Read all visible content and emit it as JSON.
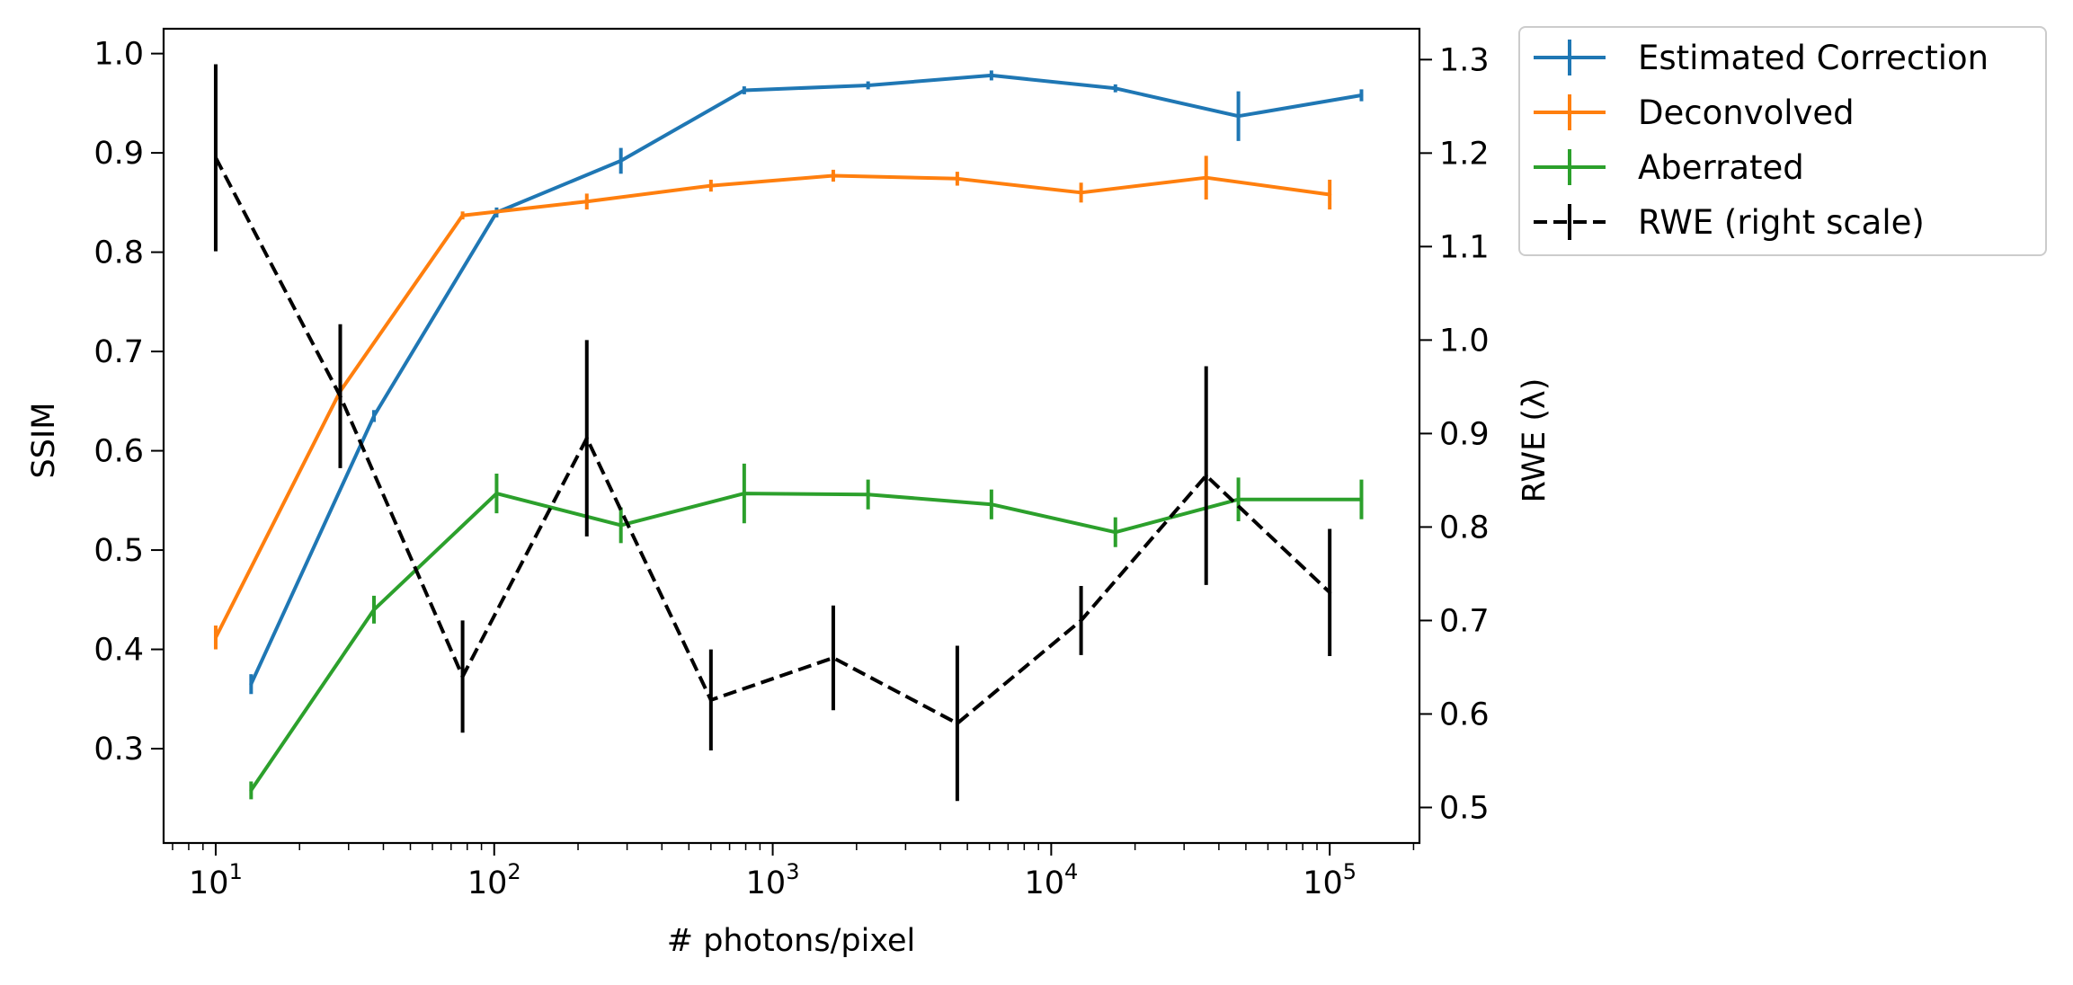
{
  "chart_data": {
    "type": "line",
    "xlabel": "# photons/pixel",
    "ylabel": "SSIM",
    "ylabel_right": "RWE (λ)",
    "xscale": "log",
    "xlim": [
      6.5,
      210000
    ],
    "ylim": [
      0.205,
      1.025
    ],
    "ylim_right": [
      0.462,
      1.333
    ],
    "x_ticks": [
      {
        "value": 10,
        "base": "10",
        "exp": "1"
      },
      {
        "value": 100,
        "base": "10",
        "exp": "2"
      },
      {
        "value": 1000,
        "base": "10",
        "exp": "3"
      },
      {
        "value": 10000,
        "base": "10",
        "exp": "4"
      },
      {
        "value": 100000,
        "base": "10",
        "exp": "5"
      }
    ],
    "y_ticks": [
      "0.3",
      "0.4",
      "0.5",
      "0.6",
      "0.7",
      "0.8",
      "0.9",
      "1.0"
    ],
    "y_ticks_right": [
      "0.5",
      "0.6",
      "0.7",
      "0.8",
      "0.9",
      "1.0",
      "1.1",
      "1.2",
      "1.3"
    ],
    "legend_position": "outside-top-right",
    "series": [
      {
        "name": "Estimated Correction",
        "color": "#1f77b4",
        "axis": "left",
        "style": "solid",
        "x": [
          13.4,
          37,
          102,
          285,
          790,
          2200,
          6100,
          17000,
          47000,
          130000
        ],
        "y": [
          0.365,
          0.635,
          0.84,
          0.892,
          0.963,
          0.968,
          0.978,
          0.965,
          0.937,
          0.958
        ],
        "err": [
          0.01,
          0.006,
          0.005,
          0.013,
          0.004,
          0.004,
          0.005,
          0.004,
          0.025,
          0.006
        ]
      },
      {
        "name": "Deconvolved",
        "color": "#ff7f0e",
        "axis": "left",
        "style": "solid",
        "x": [
          10,
          28,
          77,
          215,
          600,
          1650,
          4600,
          12800,
          36000,
          100000
        ],
        "y": [
          0.412,
          0.66,
          0.837,
          0.851,
          0.867,
          0.877,
          0.874,
          0.86,
          0.875,
          0.858
        ],
        "err": [
          0.012,
          0.015,
          0.004,
          0.008,
          0.006,
          0.006,
          0.007,
          0.01,
          0.022,
          0.015
        ]
      },
      {
        "name": "Aberrated",
        "color": "#2ca02c",
        "axis": "left",
        "style": "solid",
        "x": [
          13.4,
          37,
          102,
          285,
          790,
          2200,
          6100,
          17000,
          47000,
          130000
        ],
        "y": [
          0.258,
          0.44,
          0.557,
          0.525,
          0.557,
          0.556,
          0.546,
          0.518,
          0.551,
          0.551
        ],
        "err": [
          0.009,
          0.014,
          0.02,
          0.018,
          0.03,
          0.015,
          0.015,
          0.015,
          0.022,
          0.02
        ]
      },
      {
        "name": "RWE (right scale)",
        "color": "#000000",
        "axis": "right",
        "style": "dashed",
        "x": [
          10,
          28,
          77,
          215,
          600,
          1650,
          4600,
          12800,
          36000,
          100000
        ],
        "y": [
          1.195,
          0.94,
          0.64,
          0.895,
          0.615,
          0.66,
          0.59,
          0.7,
          0.855,
          0.73
        ],
        "err": [
          0.1,
          0.077,
          0.06,
          0.105,
          0.054,
          0.056,
          0.083,
          0.037,
          0.117,
          0.068
        ]
      }
    ]
  }
}
